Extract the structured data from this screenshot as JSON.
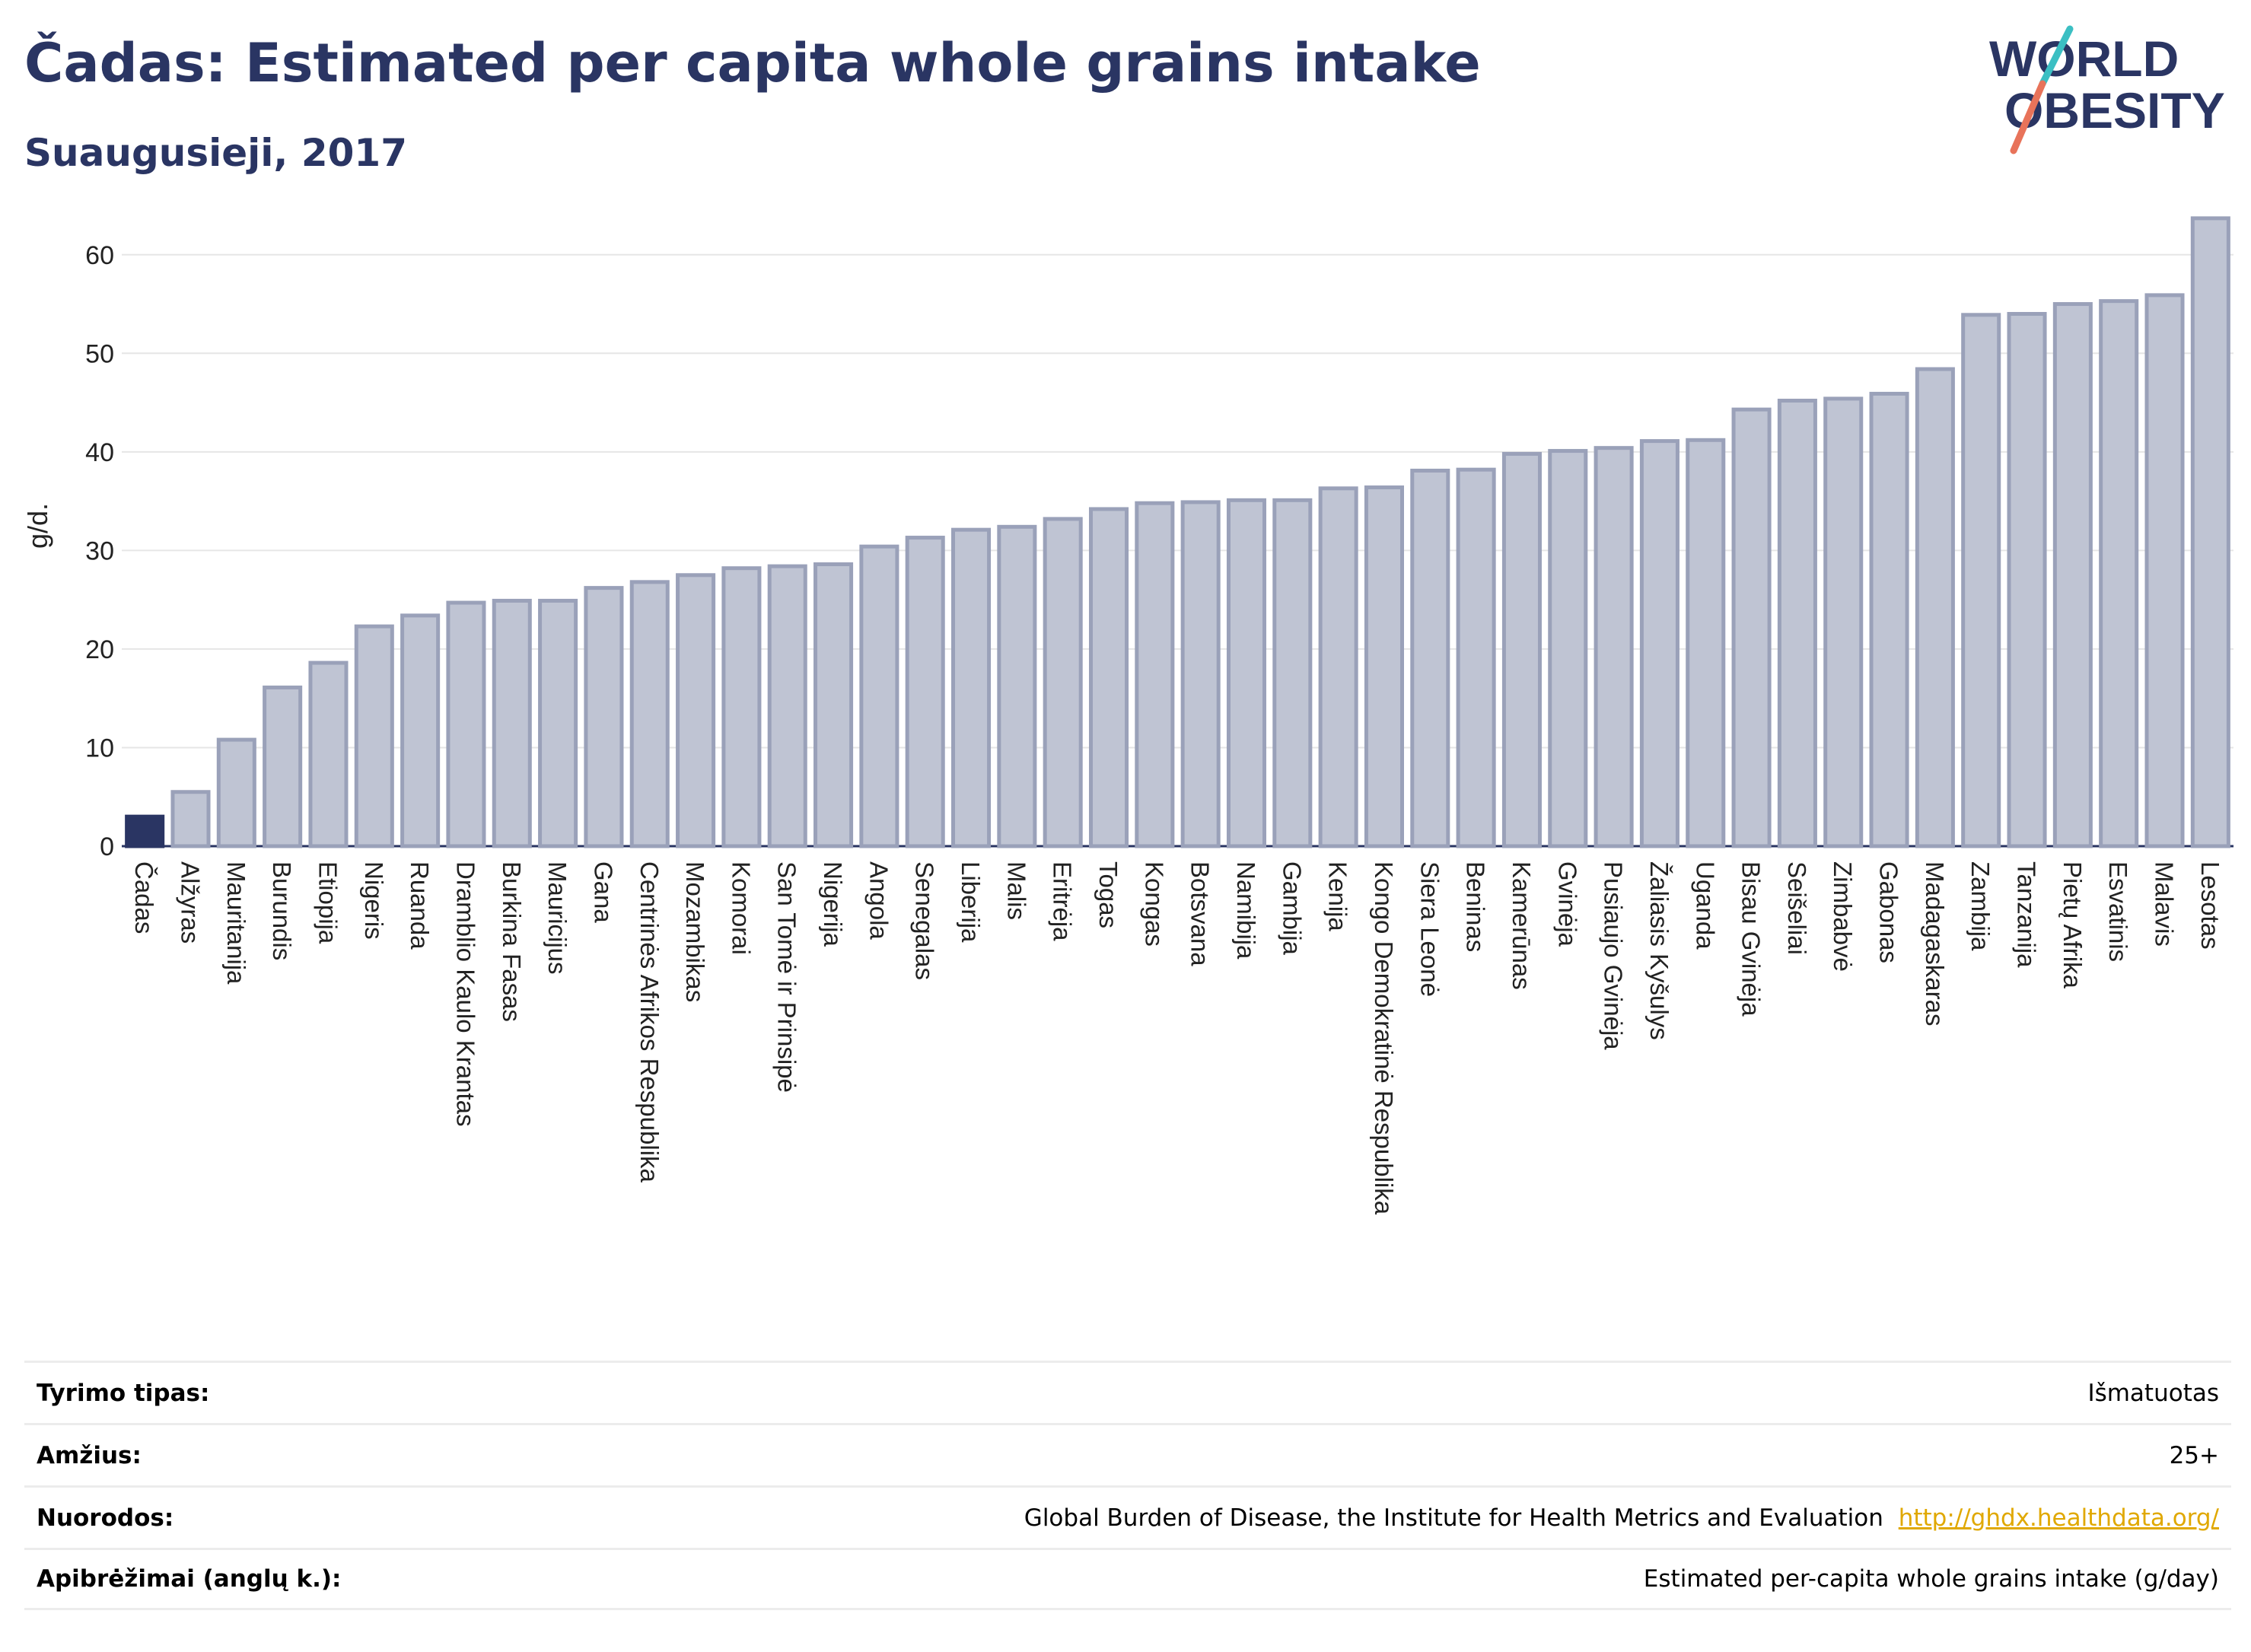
{
  "header": {
    "title": "Čadas: Estimated per capita whole grains intake",
    "subtitle": "Suaugusieji, 2017"
  },
  "logo": {
    "line1": "WORLD",
    "line2": "OBESITY",
    "icon": "world-obesity-logo"
  },
  "colors": {
    "highlight": "#2a3563",
    "bar_fill": "#bfc4d3",
    "bar_stroke": "#9aa1b9",
    "grid": "#e6e6e6",
    "text_dark": "#2a3563",
    "link": "#e0a800"
  },
  "chart_data": {
    "type": "bar",
    "ylabel": "g/d.",
    "xlabel": "",
    "ylim": [
      0,
      65
    ],
    "yticks": [
      0,
      10,
      20,
      30,
      40,
      50,
      60
    ],
    "grid": true,
    "highlight_category": "Čadas",
    "categories": [
      "Čadas",
      "Alžyras",
      "Mauritanija",
      "Burundis",
      "Etiopija",
      "Nigeris",
      "Ruanda",
      "Dramblio Kaulo Krantas",
      "Burkina Fasas",
      "Mauricijus",
      "Gana",
      "Centrinės Afrikos Respublika",
      "Mozambikas",
      "Komorai",
      "San Tomė ir Prinsipė",
      "Nigerija",
      "Angola",
      "Senegalas",
      "Liberija",
      "Malis",
      "Eritrėja",
      "Togas",
      "Kongas",
      "Botsvana",
      "Namibija",
      "Gambija",
      "Kenija",
      "Kongo Demokratinė Respublika",
      "Siera Leonė",
      "Beninas",
      "Kamerūnas",
      "Gvinėja",
      "Pusiaujo Gvinėja",
      "Žaliasis Kyšulys",
      "Uganda",
      "Bisau Gvinėja",
      "Seišeliai",
      "Zimbabvė",
      "Gabonas",
      "Madagaskaras",
      "Zambija",
      "Tanzanija",
      "Pietų Afrika",
      "Esvatinis",
      "Malavis",
      "Lesotas"
    ],
    "values": [
      3.0,
      5.5,
      10.8,
      16.1,
      18.6,
      22.3,
      23.4,
      24.7,
      24.9,
      24.9,
      26.2,
      26.8,
      27.5,
      28.2,
      28.4,
      28.6,
      30.4,
      31.3,
      32.1,
      32.4,
      33.2,
      34.2,
      34.8,
      34.9,
      35.1,
      35.1,
      36.3,
      36.4,
      38.1,
      38.2,
      39.8,
      40.1,
      40.4,
      41.1,
      41.2,
      44.3,
      45.2,
      45.4,
      45.9,
      48.4,
      53.9,
      54.0,
      55.0,
      55.3,
      55.9,
      63.7
    ]
  },
  "info": [
    {
      "label": "Tyrimo tipas:",
      "value": "Išmatuotas",
      "link": ""
    },
    {
      "label": "Amžius:",
      "value": "25+",
      "link": ""
    },
    {
      "label": "Nuorodos:",
      "value": "Global Burden of Disease, the Institute for Health Metrics and Evaluation",
      "link": "http://ghdx.healthdata.org/"
    },
    {
      "label": "Apibrėžimai (anglų k.):",
      "value": "Estimated per-capita whole grains intake (g/day)",
      "link": ""
    }
  ]
}
